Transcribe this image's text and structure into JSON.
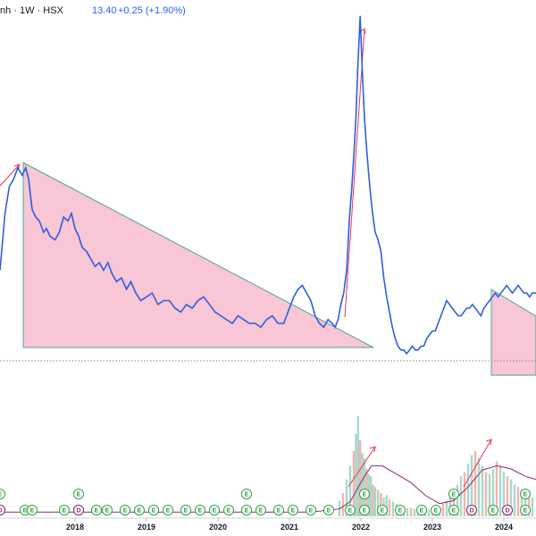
{
  "header": {
    "symbol_text": "nh · 1W · HSX",
    "price": "13.40",
    "change": "+0.25 (+1.90%)",
    "up_color": "#2962ff"
  },
  "colors": {
    "price_line": "#2f5ee0",
    "triangle_fill": "#f8c6d4",
    "triangle_edge": "#4aa88a",
    "arrow": "#e8364f",
    "volume_up": "#a8d8cc",
    "volume_down": "#f6b3ad",
    "volume_ma": "#8e2a6e",
    "dotted_level": "#7c8aa0",
    "badge_e": "#2f9e44",
    "badge_d": "#8e2a6e"
  },
  "chart_data": {
    "type": "line",
    "title": "",
    "x_axis_labels": [
      "2018",
      "2019",
      "2020",
      "2021",
      "2022",
      "2023",
      "2024"
    ],
    "x_axis_years": [
      2018,
      2019,
      2020,
      2021,
      2022,
      2023,
      2024
    ],
    "xlim": [
      2016.95,
      2024.45
    ],
    "price_ylim": [
      0,
      100
    ],
    "volume_ylim": [
      0,
      100
    ],
    "price_series": {
      "name": "",
      "x": [
        2016.95,
        2017.02,
        2017.08,
        2017.14,
        2017.2,
        2017.26,
        2017.31,
        2017.35,
        2017.4,
        2017.45,
        2017.5,
        2017.56,
        2017.6,
        2017.65,
        2017.72,
        2017.78,
        2017.84,
        2017.9,
        2017.95,
        2018.0,
        2018.05,
        2018.1,
        2018.16,
        2018.22,
        2018.28,
        2018.34,
        2018.4,
        2018.46,
        2018.52,
        2018.58,
        2018.65,
        2018.72,
        2018.78,
        2018.85,
        2018.92,
        2019.0,
        2019.08,
        2019.16,
        2019.24,
        2019.32,
        2019.4,
        2019.48,
        2019.56,
        2019.64,
        2019.72,
        2019.8,
        2019.88,
        2019.96,
        2020.04,
        2020.12,
        2020.2,
        2020.28,
        2020.36,
        2020.44,
        2020.52,
        2020.6,
        2020.68,
        2020.76,
        2020.84,
        2020.92,
        2021.0,
        2021.06,
        2021.12,
        2021.18,
        2021.24,
        2021.3,
        2021.36,
        2021.42,
        2021.48,
        2021.54,
        2021.6,
        2021.64,
        2021.68,
        2021.72,
        2021.76,
        2021.8,
        2021.84,
        2021.87,
        2021.9,
        2021.93,
        2021.96,
        2021.99,
        2022.02,
        2022.05,
        2022.08,
        2022.11,
        2022.14,
        2022.17,
        2022.2,
        2022.24,
        2022.28,
        2022.32,
        2022.36,
        2022.4,
        2022.44,
        2022.48,
        2022.52,
        2022.56,
        2022.6,
        2022.64,
        2022.68,
        2022.72,
        2022.76,
        2022.8,
        2022.84,
        2022.88,
        2022.92,
        2022.96,
        2023.0,
        2023.04,
        2023.08,
        2023.12,
        2023.16,
        2023.2,
        2023.24,
        2023.28,
        2023.32,
        2023.36,
        2023.4,
        2023.44,
        2023.48,
        2023.52,
        2023.56,
        2023.6,
        2023.64,
        2023.68,
        2023.72,
        2023.76,
        2023.8,
        2023.84,
        2023.88,
        2023.92,
        2023.96,
        2024.0,
        2024.04,
        2024.08,
        2024.12,
        2024.16,
        2024.2,
        2024.24,
        2024.28,
        2024.32,
        2024.36,
        2024.4,
        2024.45
      ],
      "y": [
        30,
        45,
        52,
        54,
        57,
        55,
        57,
        54,
        46,
        44,
        43,
        40,
        41,
        39,
        38,
        40,
        44,
        43,
        45,
        41,
        39,
        36,
        35,
        33,
        31,
        32,
        30,
        32,
        29,
        27,
        28,
        25,
        27,
        24,
        22,
        23,
        24,
        21,
        22,
        22,
        20,
        19,
        21,
        20,
        22,
        23,
        21,
        19,
        18,
        17,
        16,
        18,
        17,
        16,
        16,
        15,
        17,
        18,
        16,
        16,
        20,
        23,
        25,
        26,
        24,
        22,
        18,
        16,
        15,
        17,
        16,
        15,
        17,
        21,
        24,
        30,
        44,
        51,
        60,
        70,
        85,
        97,
        82,
        70,
        62,
        55,
        49,
        44,
        40,
        38,
        35,
        28,
        23,
        19,
        15,
        12,
        10,
        9,
        9,
        8,
        9,
        10,
        9,
        9,
        10,
        10,
        12,
        13,
        14,
        14,
        16,
        18,
        20,
        22,
        21,
        20,
        19,
        18,
        18,
        19,
        20,
        20,
        21,
        20,
        19,
        18,
        20,
        21,
        22,
        23,
        24,
        23,
        24,
        25,
        26,
        25,
        24,
        25,
        26,
        25,
        24,
        24,
        23,
        24,
        24
      ]
    },
    "volume_series": {
      "name": "",
      "x": [
        2021.7,
        2021.75,
        2021.8,
        2021.85,
        2021.9,
        2021.93,
        2021.96,
        2021.99,
        2022.02,
        2022.05,
        2022.08,
        2022.11,
        2022.14,
        2022.17,
        2022.2,
        2022.24,
        2022.28,
        2022.32,
        2022.36,
        2022.4,
        2022.45,
        2022.5,
        2022.55,
        2022.6,
        2022.65,
        2022.7,
        2022.75,
        2022.8,
        2022.85,
        2022.9,
        2022.95,
        2023.0,
        2023.05,
        2023.1,
        2023.15,
        2023.2,
        2023.25,
        2023.3,
        2023.35,
        2023.4,
        2023.45,
        2023.5,
        2023.55,
        2023.6,
        2023.65,
        2023.7,
        2023.75,
        2023.8,
        2023.85,
        2023.9,
        2023.95,
        2024.0,
        2024.05,
        2024.1,
        2024.15,
        2024.2,
        2024.25,
        2024.3,
        2024.35,
        2024.4
      ],
      "values": [
        15,
        22,
        35,
        48,
        62,
        78,
        95,
        72,
        60,
        55,
        45,
        40,
        38,
        30,
        28,
        25,
        22,
        18,
        20,
        16,
        14,
        12,
        10,
        9,
        8,
        8,
        7,
        6,
        6,
        5,
        6,
        7,
        8,
        9,
        12,
        15,
        18,
        25,
        30,
        38,
        42,
        50,
        58,
        62,
        55,
        48,
        42,
        40,
        45,
        52,
        48,
        42,
        38,
        35,
        30,
        28,
        25,
        22,
        20,
        18
      ]
    },
    "volume_ma": {
      "name": "",
      "x": [
        2016.95,
        2017.5,
        2018.0,
        2019.0,
        2020.0,
        2020.8,
        2021.3,
        2021.7,
        2021.85,
        2021.95,
        2022.05,
        2022.15,
        2022.3,
        2022.5,
        2022.7,
        2022.9,
        2023.1,
        2023.3,
        2023.5,
        2023.7,
        2023.9,
        2024.1,
        2024.3,
        2024.45
      ],
      "y": [
        4,
        4,
        4,
        4,
        4,
        4,
        4,
        7,
        14,
        26,
        38,
        48,
        48,
        40,
        32,
        20,
        12,
        15,
        28,
        44,
        48,
        45,
        38,
        35
      ]
    },
    "events_e": [
      2016.95,
      2017.3,
      2017.4,
      2017.85,
      2018.05,
      2018.3,
      2018.45,
      2018.7,
      2018.9,
      2019.1,
      2019.3,
      2019.55,
      2019.75,
      2019.95,
      2020.15,
      2020.4,
      2020.6,
      2020.85,
      2021.05,
      2021.3,
      2021.55,
      2021.85,
      2022.05,
      2022.3,
      2022.55,
      2022.85,
      2023.05,
      2023.3,
      2023.55,
      2023.85,
      2024.05,
      2024.3
    ],
    "events_e_upper": [
      2016.95,
      2018.05,
      2020.4,
      2022.05,
      2023.3,
      2024.3
    ],
    "events_d": [
      2016.95,
      2018.05,
      2023.55,
      2024.05
    ]
  }
}
